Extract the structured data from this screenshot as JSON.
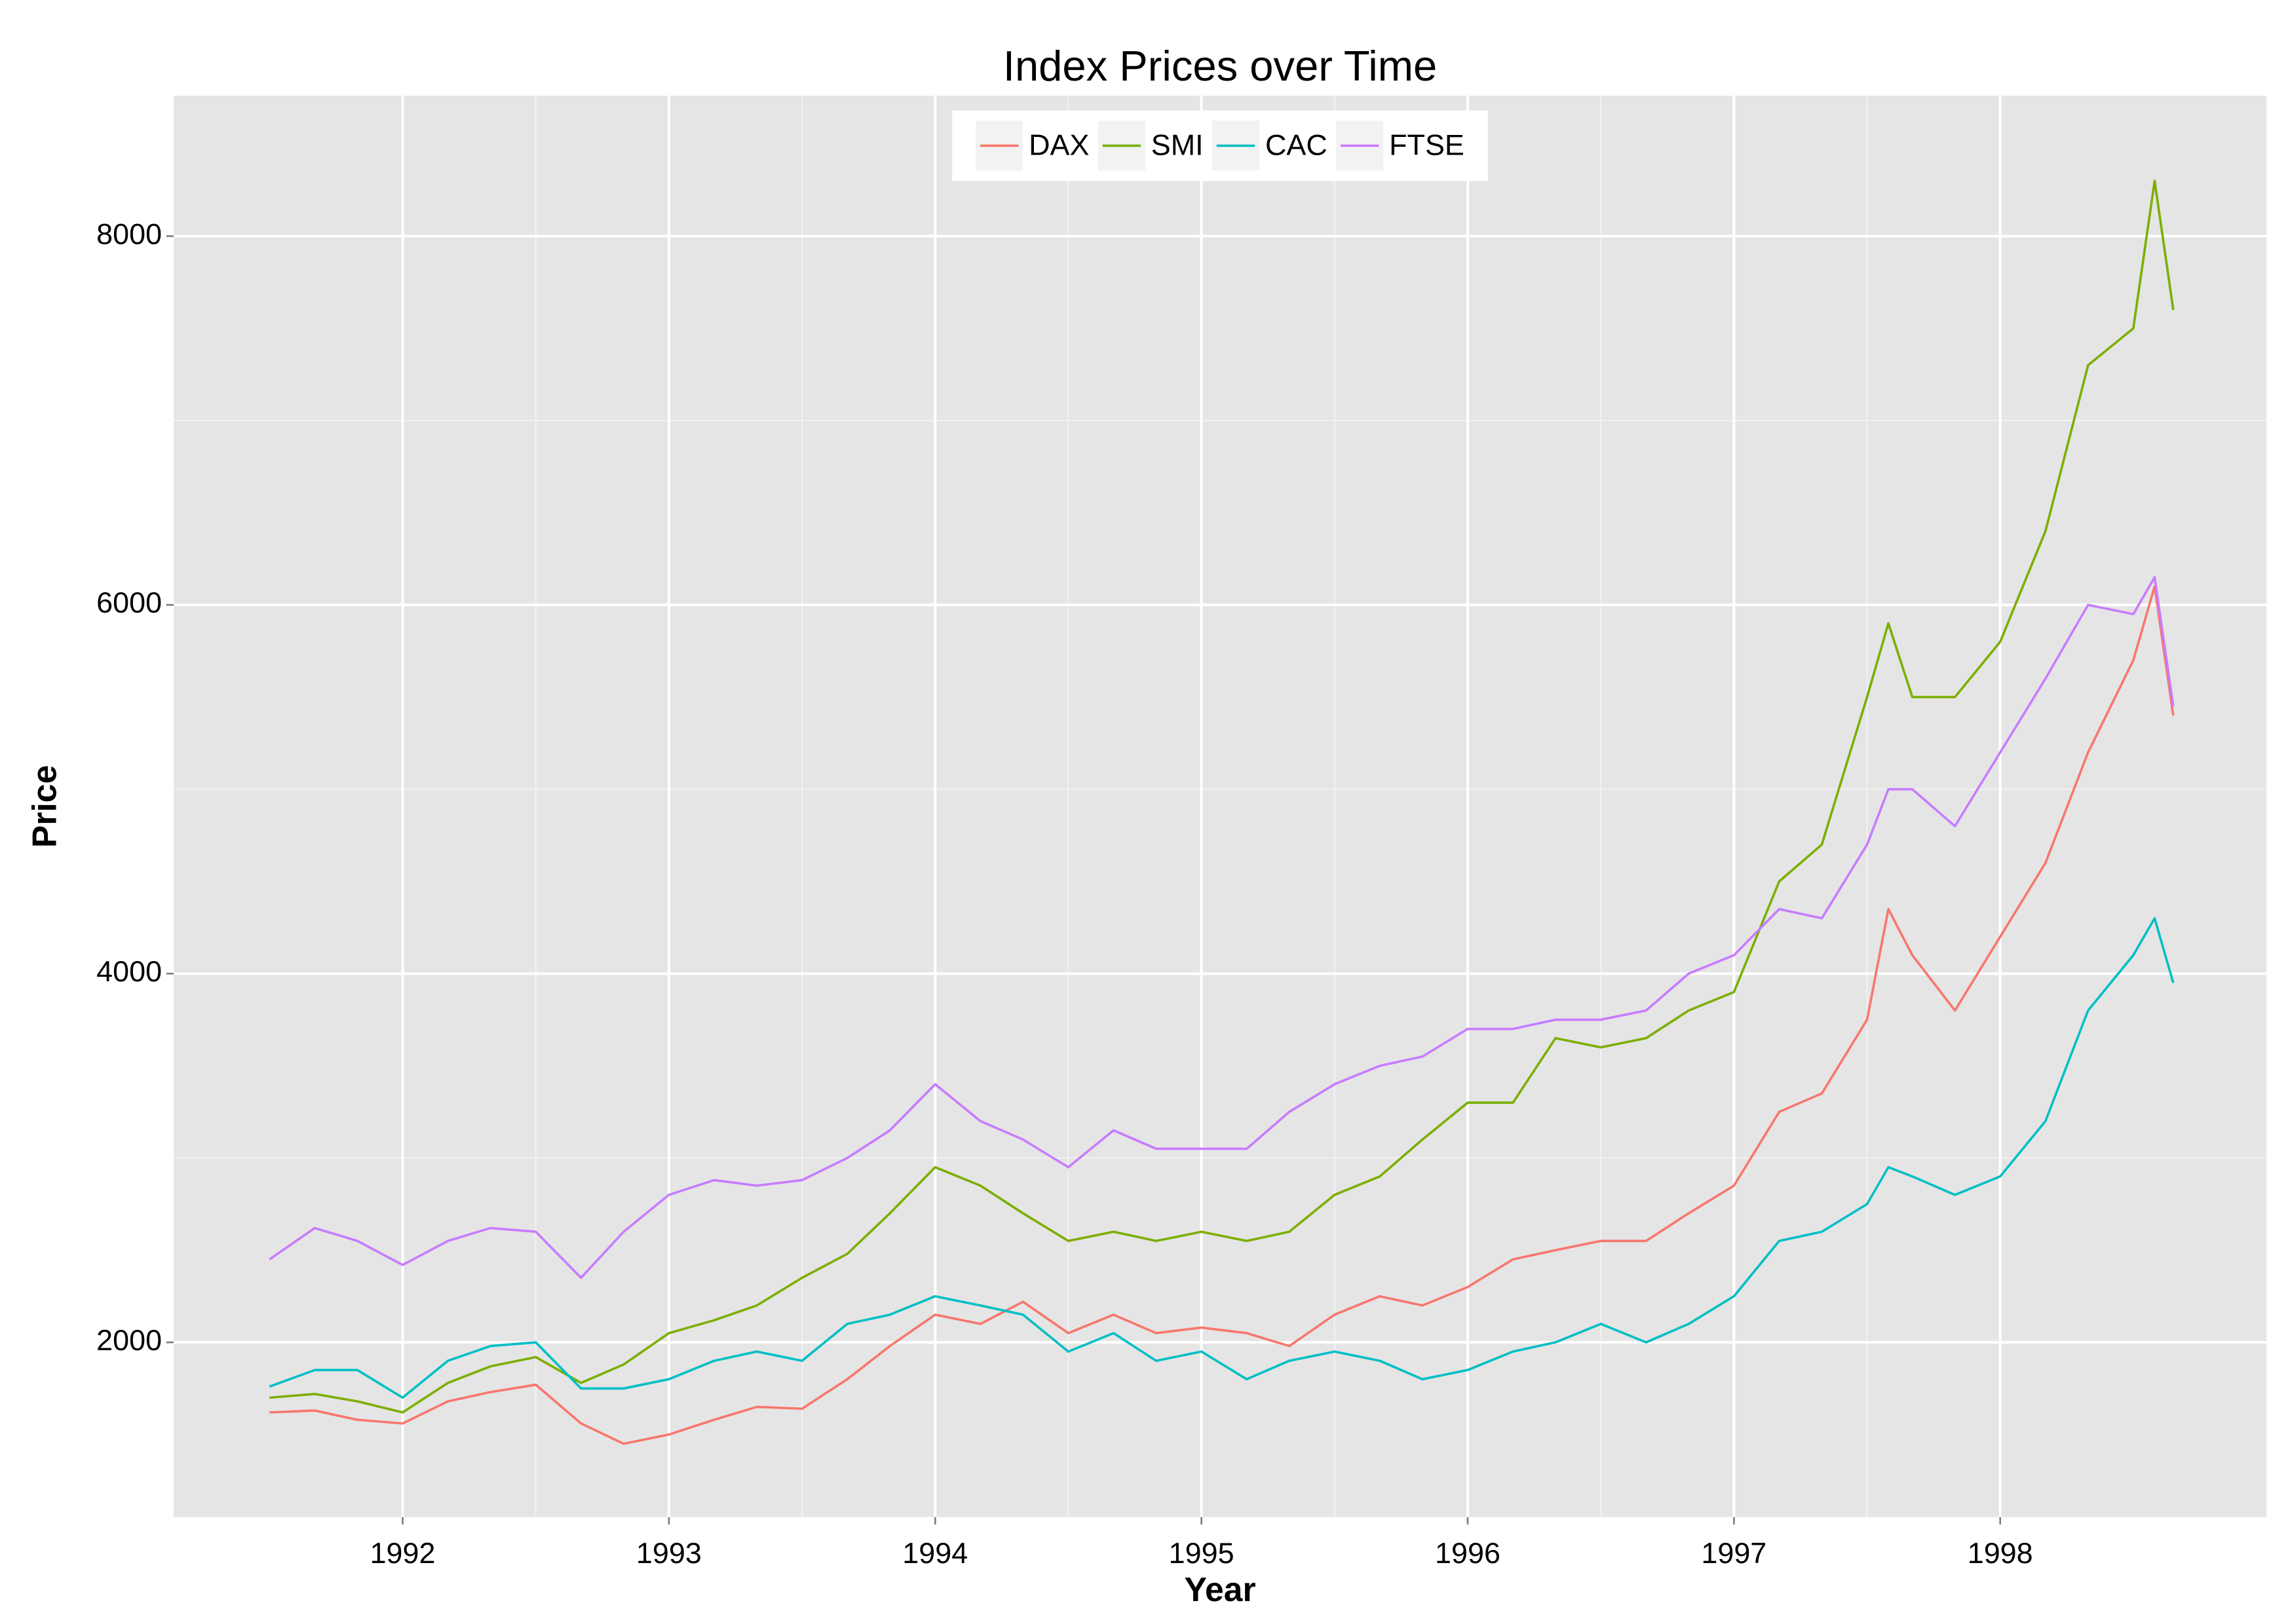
{
  "chart_data": {
    "type": "line",
    "title": "Index Prices over Time",
    "x_label": "Year",
    "y_label": "Price",
    "x": [
      1991.5,
      1991.67,
      1991.83,
      1992.0,
      1992.17,
      1992.33,
      1992.5,
      1992.67,
      1992.83,
      1993.0,
      1993.17,
      1993.33,
      1993.5,
      1993.67,
      1993.83,
      1994.0,
      1994.17,
      1994.33,
      1994.5,
      1994.67,
      1994.83,
      1995.0,
      1995.17,
      1995.33,
      1995.5,
      1995.67,
      1995.83,
      1996.0,
      1996.17,
      1996.33,
      1996.5,
      1996.67,
      1996.83,
      1997.0,
      1997.17,
      1997.33,
      1997.5,
      1997.58,
      1997.67,
      1997.83,
      1998.0,
      1998.17,
      1998.33,
      1998.5,
      1998.58,
      1998.65
    ],
    "series": [
      {
        "name": "DAX",
        "color": "#F8766D",
        "values": [
          1620,
          1630,
          1580,
          1560,
          1680,
          1730,
          1770,
          1560,
          1450,
          1500,
          1580,
          1650,
          1640,
          1800,
          1980,
          2150,
          2100,
          2220,
          2050,
          2150,
          2050,
          2080,
          2050,
          1980,
          2150,
          2250,
          2200,
          2300,
          2450,
          2500,
          2550,
          2550,
          2700,
          2850,
          3250,
          3350,
          3750,
          4350,
          4100,
          3800,
          4200,
          4600,
          5200,
          5700,
          6100,
          5400
        ]
      },
      {
        "name": "SMI",
        "color": "#7CAE00",
        "values": [
          1700,
          1720,
          1680,
          1620,
          1780,
          1870,
          1920,
          1780,
          1880,
          2050,
          2120,
          2200,
          2350,
          2480,
          2700,
          2950,
          2850,
          2700,
          2550,
          2600,
          2550,
          2600,
          2550,
          2600,
          2800,
          2900,
          3100,
          3300,
          3300,
          3650,
          3600,
          3650,
          3800,
          3900,
          4500,
          4700,
          5500,
          5900,
          5500,
          5500,
          5800,
          6400,
          7300,
          7500,
          8300,
          7600
        ]
      },
      {
        "name": "CAC",
        "color": "#00BFC4",
        "values": [
          1760,
          1850,
          1850,
          1700,
          1900,
          1980,
          2000,
          1750,
          1750,
          1800,
          1900,
          1950,
          1900,
          2100,
          2150,
          2250,
          2200,
          2150,
          1950,
          2050,
          1900,
          1950,
          1800,
          1900,
          1950,
          1900,
          1800,
          1850,
          1950,
          2000,
          2100,
          2000,
          2100,
          2250,
          2550,
          2600,
          2750,
          2950,
          2900,
          2800,
          2900,
          3200,
          3800,
          4100,
          4300,
          3950
        ]
      },
      {
        "name": "FTSE",
        "color": "#C77CFF",
        "values": [
          2450,
          2620,
          2550,
          2420,
          2550,
          2620,
          2600,
          2350,
          2600,
          2800,
          2880,
          2850,
          2880,
          3000,
          3150,
          3400,
          3200,
          3100,
          2950,
          3150,
          3050,
          3050,
          3050,
          3250,
          3400,
          3500,
          3550,
          3700,
          3700,
          3750,
          3750,
          3800,
          4000,
          4100,
          4350,
          4300,
          4700,
          5000,
          5000,
          4800,
          5200,
          5600,
          6000,
          5950,
          6150,
          5450
        ]
      }
    ],
    "xlim": [
      1991.14,
      1999.0
    ],
    "ylim": [
      1052,
      8762
    ],
    "xticks": [
      1992,
      1993,
      1994,
      1995,
      1996,
      1997,
      1998
    ],
    "yticks": [
      2000,
      4000,
      6000,
      8000
    ],
    "grid": true,
    "legend": "top"
  }
}
